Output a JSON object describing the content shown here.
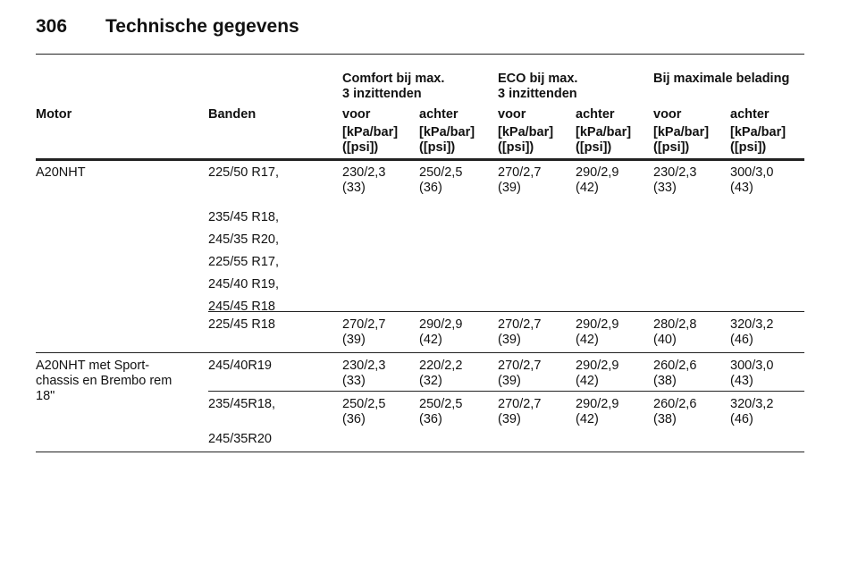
{
  "header": {
    "page_number": "306",
    "title": "Technische gegevens"
  },
  "table": {
    "group_headers": [
      "Comfort bij max.\n3 inzittenden",
      "ECO bij max.\n3 inzittenden",
      "Bij maximale belading"
    ],
    "columns": [
      "Motor",
      "Banden",
      "voor",
      "achter",
      "voor",
      "achter",
      "voor",
      "achter"
    ],
    "units": [
      "[kPa/bar]\n([psi])",
      "[kPa/bar]\n([psi])",
      "[kPa/bar]\n([psi])",
      "[kPa/bar]\n([psi])",
      "[kPa/bar]\n([psi])",
      "[kPa/bar]\n([psi])"
    ],
    "rows": [
      {
        "motor": "A20NHT",
        "tyres": [
          "225/50 R17,",
          "235/45 R18,",
          "245/35 R20,",
          "225/55 R17,",
          "245/40 R19,",
          "245/45 R18"
        ],
        "values": [
          "230/2,3\n(33)",
          "250/2,5\n(36)",
          "270/2,7\n(39)",
          "290/2,9\n(42)",
          "230/2,3\n(33)",
          "300/3,0\n(43)"
        ]
      },
      {
        "tyres": [
          "225/45 R18"
        ],
        "values": [
          "270/2,7\n(39)",
          "290/2,9\n(42)",
          "270/2,7\n(39)",
          "290/2,9\n(42)",
          "280/2,8\n(40)",
          "320/3,2\n(46)"
        ]
      },
      {
        "motor": "A20NHT met Sport-\nchassis en Brembo rem\n18\"",
        "tyres": [
          "245/40R19"
        ],
        "values": [
          "230/2,3\n(33)",
          "220/2,2\n(32)",
          "270/2,7\n(39)",
          "290/2,9\n(42)",
          "260/2,6\n(38)",
          "300/3,0\n(43)"
        ]
      },
      {
        "tyres": [
          "235/45R18,",
          "245/35R20"
        ],
        "values": [
          "250/2,5\n(36)",
          "250/2,5\n(36)",
          "270/2,7\n(39)",
          "290/2,9\n(42)",
          "260/2,6\n(38)",
          "320/3,2\n(46)"
        ]
      }
    ]
  }
}
